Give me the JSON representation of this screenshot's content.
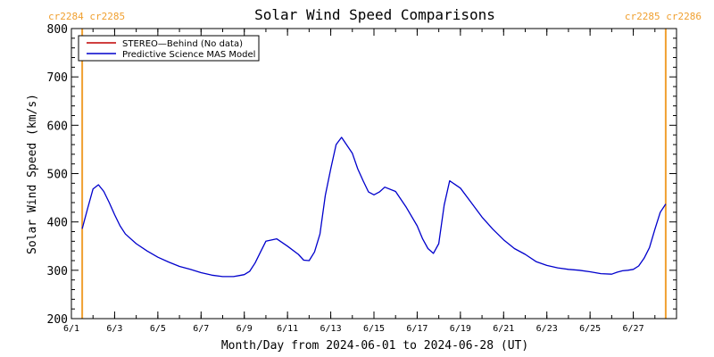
{
  "chart_data": {
    "type": "line",
    "title": "Solar Wind Speed Comparisons",
    "xlabel": "Month/Day from 2024-06-01 to 2024-06-28 (UT)",
    "ylabel": "Solar Wind Speed (km/s)",
    "ylim": [
      200,
      800
    ],
    "xlim": [
      "2024-06-01",
      "2024-06-28"
    ],
    "y_ticks": [
      "200",
      "300",
      "400",
      "500",
      "600",
      "700",
      "800"
    ],
    "x_ticks": [
      {
        "label": "6/1",
        "date": "2024-06-01"
      },
      {
        "label": "6/3",
        "date": "2024-06-03"
      },
      {
        "label": "6/5",
        "date": "2024-06-05"
      },
      {
        "label": "6/7",
        "date": "2024-06-07"
      },
      {
        "label": "6/9",
        "date": "2024-06-09"
      },
      {
        "label": "6/11",
        "date": "2024-06-11"
      },
      {
        "label": "6/13",
        "date": "2024-06-13"
      },
      {
        "label": "6/15",
        "date": "2024-06-15"
      },
      {
        "label": "6/17",
        "date": "2024-06-17"
      },
      {
        "label": "6/19",
        "date": "2024-06-19"
      },
      {
        "label": "6/21",
        "date": "2024-06-21"
      },
      {
        "label": "6/23",
        "date": "2024-06-23"
      },
      {
        "label": "6/25",
        "date": "2024-06-25"
      },
      {
        "label": "6/27",
        "date": "2024-06-27"
      }
    ],
    "grid": false,
    "legend_position": "top-left",
    "carrington_markers": [
      {
        "label": "cr2284 cr2285",
        "date": "2024-06-01 12:00",
        "label_align": "left"
      },
      {
        "label": "cr2285 cr2286",
        "date": "2024-06-28 12:00",
        "label_align": "right"
      }
    ],
    "series": [
      {
        "name": "STEREO—Behind (No data)",
        "color": "#c00000",
        "x": [],
        "values": []
      },
      {
        "name": "Predictive Science MAS Model",
        "color": "#0000cc",
        "x": [
          "2024-06-01 12:00",
          "2024-06-01 18:00",
          "2024-06-02 00:00",
          "2024-06-02 06:00",
          "2024-06-02 12:00",
          "2024-06-02 18:00",
          "2024-06-03 00:00",
          "2024-06-03 06:00",
          "2024-06-03 12:00",
          "2024-06-04 00:00",
          "2024-06-04 12:00",
          "2024-06-05 00:00",
          "2024-06-05 12:00",
          "2024-06-06 00:00",
          "2024-06-06 12:00",
          "2024-06-07 00:00",
          "2024-06-07 12:00",
          "2024-06-08 00:00",
          "2024-06-08 12:00",
          "2024-06-08 18:00",
          "2024-06-09 00:00",
          "2024-06-09 06:00",
          "2024-06-09 12:00",
          "2024-06-09 18:00",
          "2024-06-10 00:00",
          "2024-06-10 12:00",
          "2024-06-11 00:00",
          "2024-06-11 12:00",
          "2024-06-11 18:00",
          "2024-06-12 00:00",
          "2024-06-12 06:00",
          "2024-06-12 12:00",
          "2024-06-12 18:00",
          "2024-06-13 00:00",
          "2024-06-13 06:00",
          "2024-06-13 12:00",
          "2024-06-14 00:00",
          "2024-06-14 06:00",
          "2024-06-14 12:00",
          "2024-06-14 18:00",
          "2024-06-15 00:00",
          "2024-06-15 06:00",
          "2024-06-15 12:00",
          "2024-06-16 00:00",
          "2024-06-16 12:00",
          "2024-06-17 00:00",
          "2024-06-17 06:00",
          "2024-06-17 12:00",
          "2024-06-17 18:00",
          "2024-06-18 00:00",
          "2024-06-18 06:00",
          "2024-06-18 12:00",
          "2024-06-19 00:00",
          "2024-06-19 12:00",
          "2024-06-20 00:00",
          "2024-06-20 12:00",
          "2024-06-21 00:00",
          "2024-06-21 12:00",
          "2024-06-22 00:00",
          "2024-06-22 12:00",
          "2024-06-23 00:00",
          "2024-06-23 12:00",
          "2024-06-24 00:00",
          "2024-06-24 12:00",
          "2024-06-25 00:00",
          "2024-06-25 12:00",
          "2024-06-26 00:00",
          "2024-06-26 06:00",
          "2024-06-26 12:00",
          "2024-06-26 18:00",
          "2024-06-27 00:00",
          "2024-06-27 06:00",
          "2024-06-27 12:00",
          "2024-06-27 18:00",
          "2024-06-28 00:00",
          "2024-06-28 06:00",
          "2024-06-28 12:00"
        ],
        "values": [
          386,
          428,
          468,
          477,
          463,
          440,
          415,
          392,
          375,
          355,
          340,
          327,
          317,
          308,
          302,
          295,
          290,
          287,
          287,
          289,
          291,
          298,
          315,
          338,
          360,
          365,
          350,
          333,
          321,
          320,
          338,
          375,
          455,
          510,
          560,
          575,
          542,
          510,
          485,
          462,
          456,
          462,
          472,
          463,
          430,
          392,
          365,
          345,
          335,
          355,
          435,
          485,
          470,
          440,
          410,
          385,
          363,
          345,
          333,
          318,
          310,
          305,
          302,
          300,
          297,
          293,
          292,
          296,
          299,
          300,
          302,
          309,
          325,
          347,
          385,
          420,
          437
        ]
      }
    ]
  }
}
